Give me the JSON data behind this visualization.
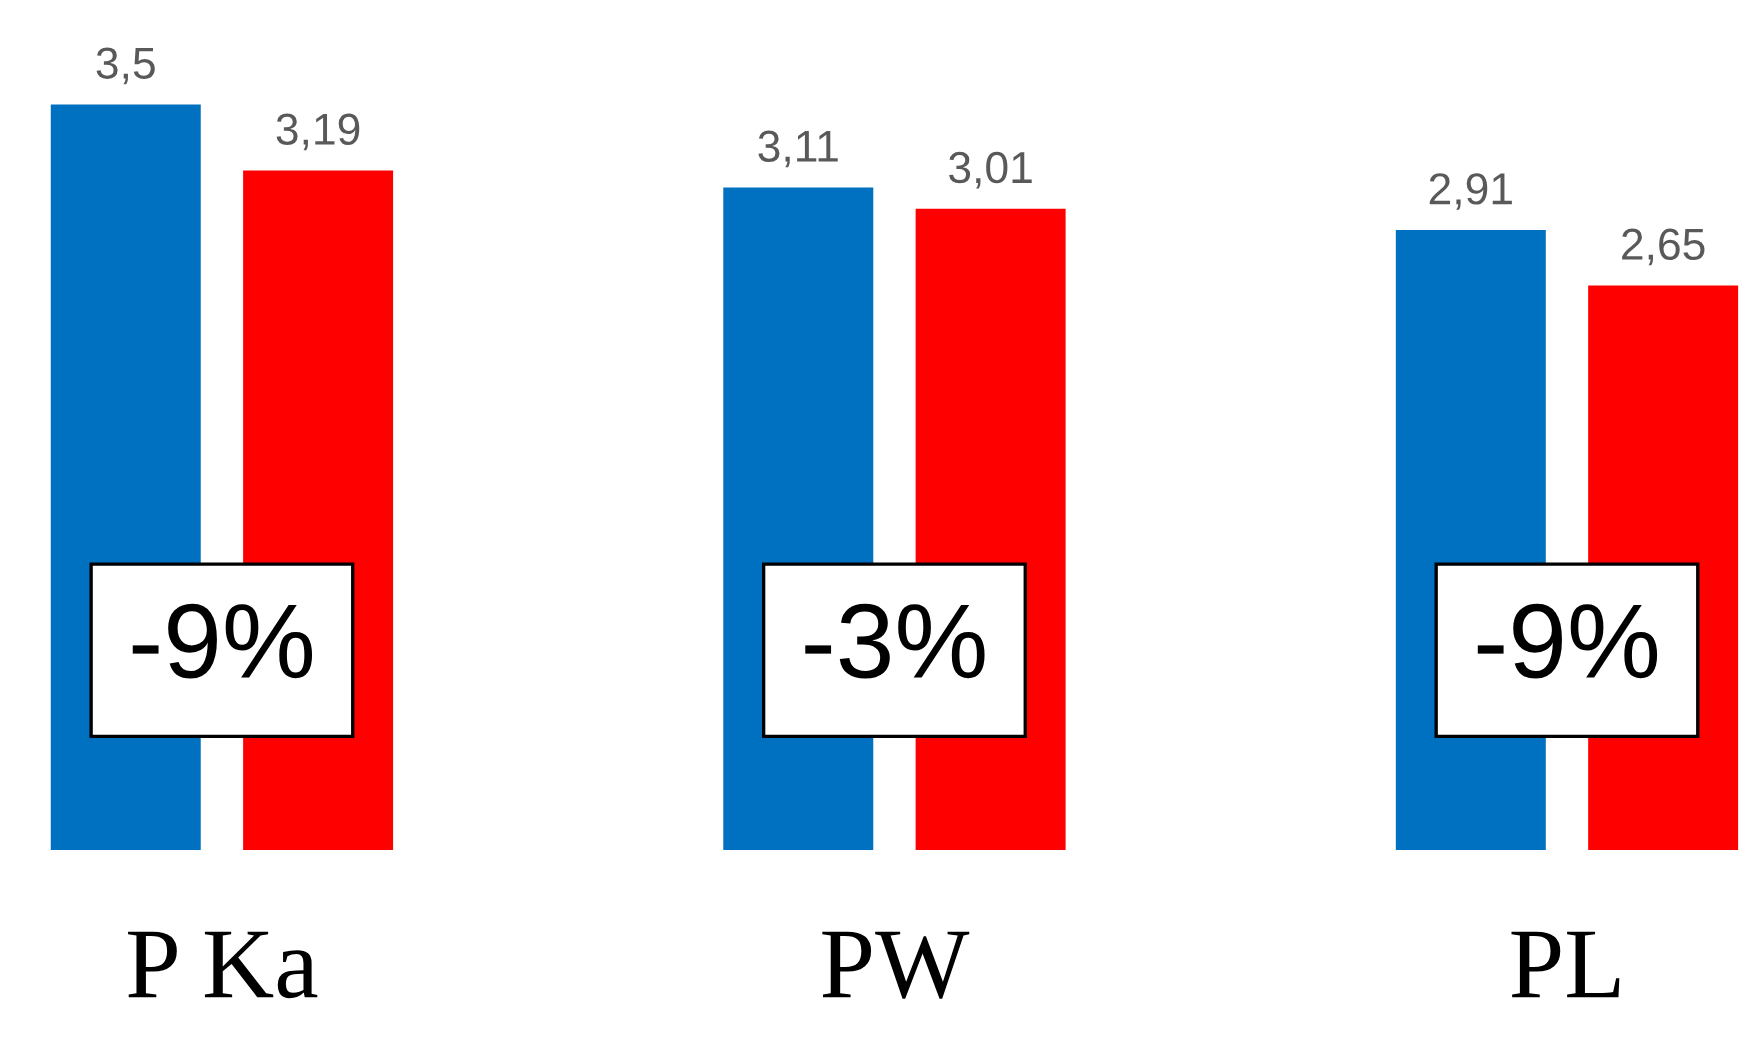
{
  "chart_data": {
    "type": "bar",
    "categories": [
      "P Ka",
      "PW",
      "PL"
    ],
    "series": [
      {
        "color": "#0070c0",
        "values": [
          3.5,
          3.11,
          2.91
        ],
        "value_labels": [
          "3,5",
          "3,11",
          "2,91"
        ]
      },
      {
        "color": "#ff0000",
        "values": [
          3.19,
          3.01,
          2.65
        ],
        "value_labels": [
          "3,19",
          "3,01",
          "2,65"
        ]
      }
    ],
    "annotations": [
      "-9%",
      "-3%",
      "-9%"
    ]
  }
}
